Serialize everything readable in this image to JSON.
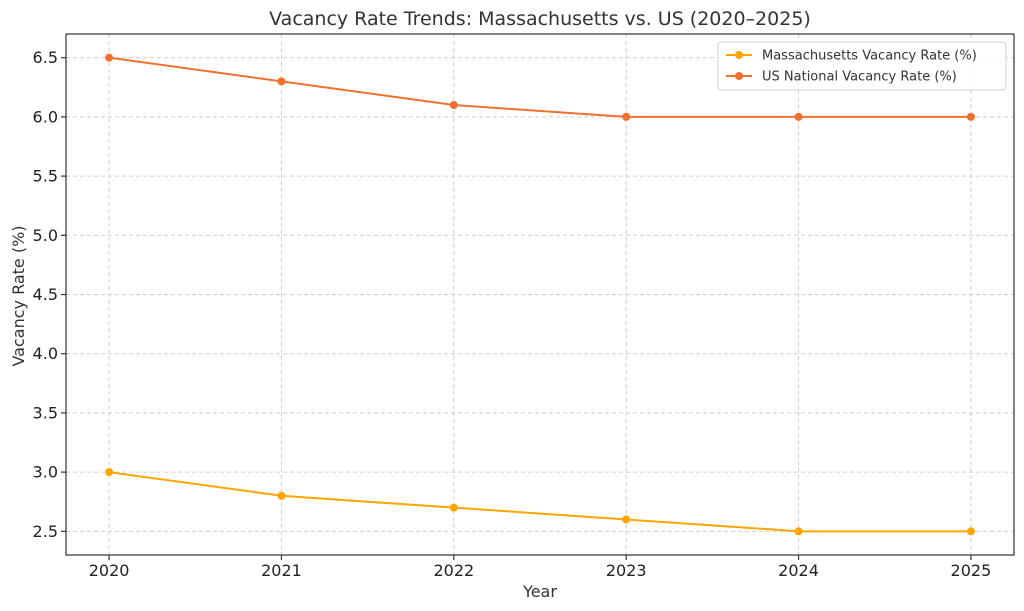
{
  "chart_data": {
    "type": "line",
    "title": "Vacancy Rate Trends: Massachusetts vs. US (2020–2025)",
    "xlabel": "Year",
    "ylabel": "Vacancy Rate (%)",
    "x": [
      2020,
      2021,
      2022,
      2023,
      2024,
      2025
    ],
    "x_tick_labels": [
      "2020",
      "2021",
      "2022",
      "2023",
      "2024",
      "2025"
    ],
    "y_ticks": [
      2.5,
      3.0,
      3.5,
      4.0,
      4.5,
      5.0,
      5.5,
      6.0,
      6.5
    ],
    "y_tick_labels": [
      "2.5",
      "3.0",
      "3.5",
      "4.0",
      "4.5",
      "5.0",
      "5.5",
      "6.0",
      "6.5"
    ],
    "ylim": [
      2.3,
      6.7
    ],
    "xlim": [
      2019.75,
      2025.25
    ],
    "grid": true,
    "legend_position": "top-right",
    "series": [
      {
        "name": "Massachusetts Vacancy Rate (%)",
        "color": "#FFA500",
        "values": [
          3.0,
          2.8,
          2.7,
          2.6,
          2.5,
          2.5
        ]
      },
      {
        "name": "US National Vacancy Rate (%)",
        "color": "#F07030",
        "values": [
          6.5,
          6.3,
          6.1,
          6.0,
          6.0,
          6.0
        ]
      }
    ]
  }
}
